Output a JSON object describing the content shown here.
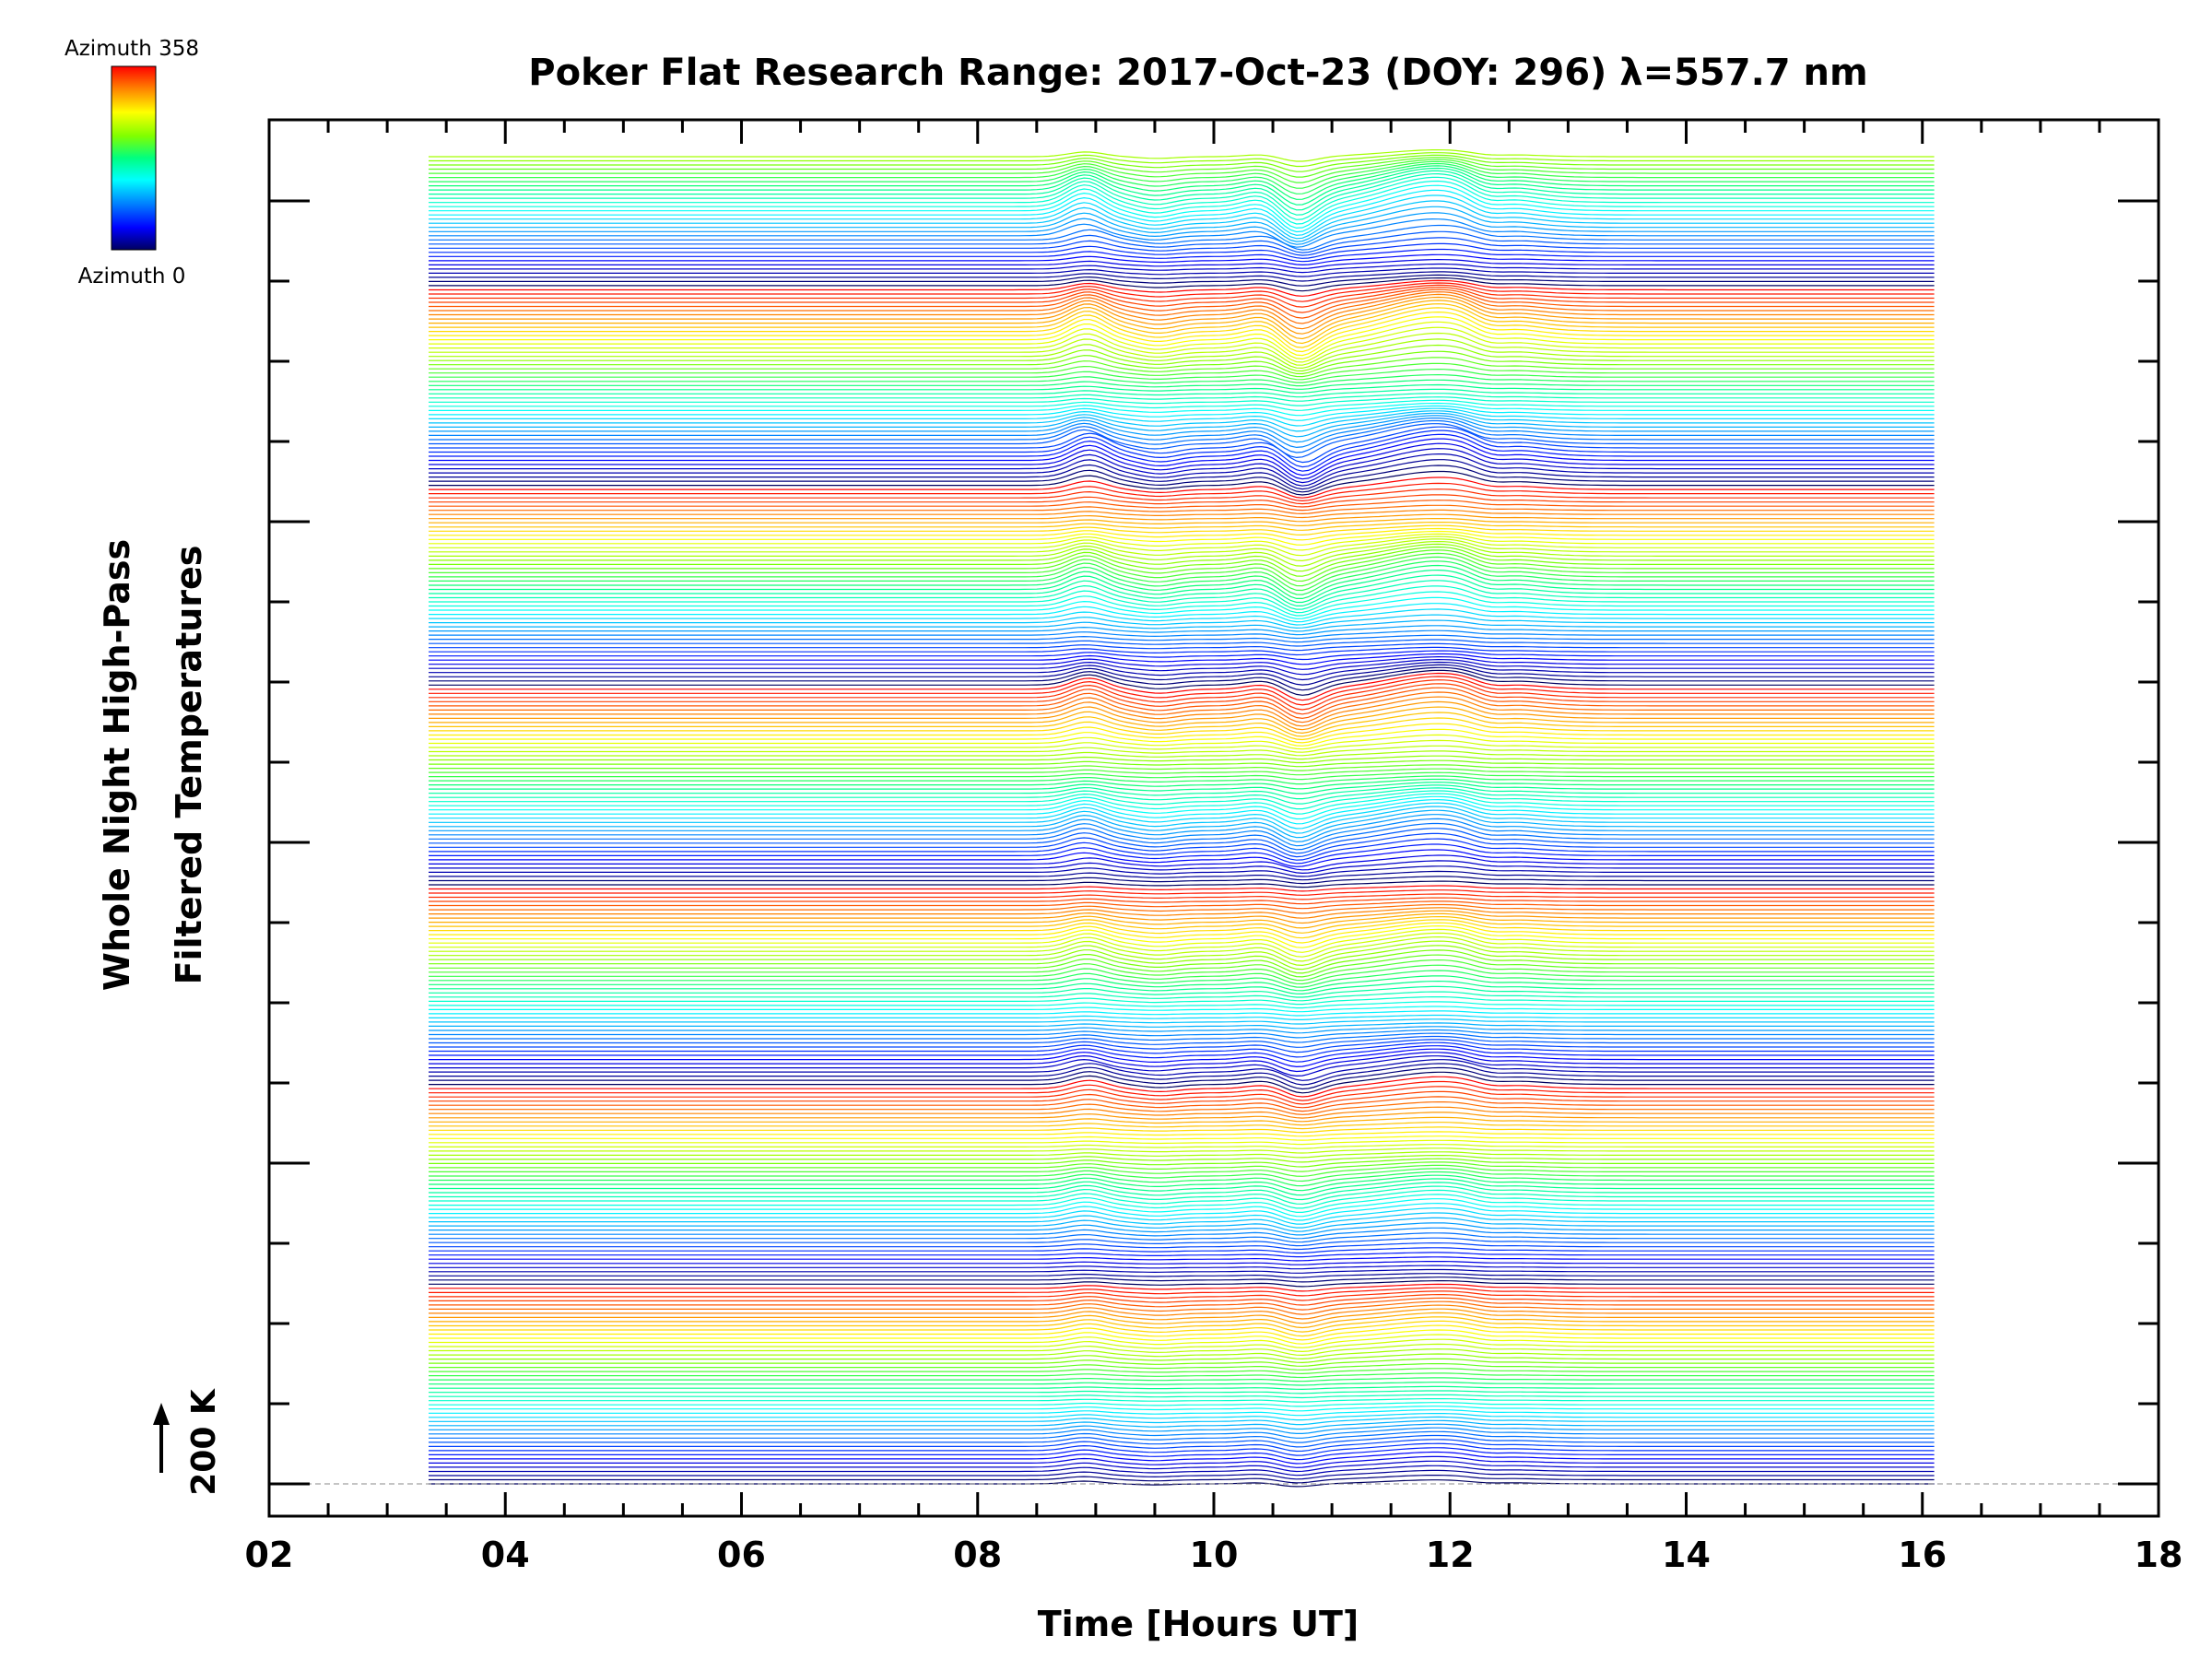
{
  "chart_data": {
    "type": "line",
    "title": "Poker Flat Research Range: 2017-Oct-23 (DOY: 296) λ=557.7 nm",
    "xlabel": "Time [Hours UT]",
    "ylabel_line1": "Whole Night High-Pass",
    "ylabel_line2": "Filtered Temperatures",
    "scale_label": "200 K",
    "xlim": [
      2,
      18
    ],
    "x_ticks": [
      "02",
      "04",
      "06",
      "08",
      "10",
      "12",
      "14",
      "16",
      "18"
    ],
    "x_range": [
      3.35,
      16.1
    ],
    "azimuth_range": [
      0,
      358
    ],
    "colorbar": {
      "top_label": "Azimuth 358",
      "bottom_label": "Azimuth 0",
      "colors": [
        "#ff0000",
        "#ff8000",
        "#ffff00",
        "#80ff00",
        "#00ff80",
        "#00ffff",
        "#0080ff",
        "#0000ff",
        "#000060"
      ]
    },
    "grid": false,
    "y_ticks_labeled": false,
    "num_traces": 320,
    "trace_step_k": 20,
    "feature_times": [
      8.9,
      9.5,
      10.4,
      10.7,
      11.9,
      12.3
    ],
    "feature_amplitudes_k": [
      110,
      -40,
      50,
      -120,
      160,
      -60
    ]
  }
}
